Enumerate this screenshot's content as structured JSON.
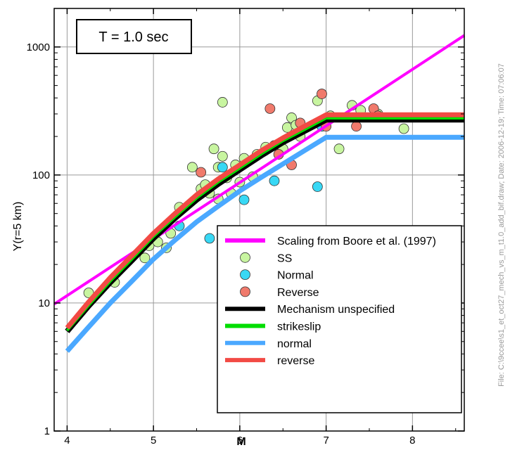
{
  "chart_data": {
    "type": "scatter",
    "xlabel": "M",
    "ylabel": "Y(r=5 km)",
    "xlim": [
      3.85,
      8.6
    ],
    "ylim": [
      1,
      2000
    ],
    "yscale": "log",
    "xticks": [
      "4",
      "5",
      "6",
      "7",
      "8"
    ],
    "yticks": [
      "1",
      "10",
      "100",
      "1000"
    ],
    "grid": true,
    "annotation": "T = 1.0 sec",
    "side_note": "File: C:\\9ccee\\s1_et_oct27_mech_vs_m_t1.0_add_bif.draw; Date: 2006-12-19; Time: 07:06:07",
    "legend_position": "bottom-right",
    "series": [
      {
        "name": "Scaling from Boore et al. (1997)",
        "kind": "line",
        "color": "#ff00ff",
        "x": [
          3.85,
          8.6
        ],
        "y": [
          9.8,
          1230
        ]
      },
      {
        "name": "SS",
        "kind": "points",
        "color": "#c8f5a0",
        "x": [
          4.25,
          4.55,
          4.9,
          4.95,
          5.05,
          5.15,
          5.2,
          5.3,
          5.45,
          5.55,
          5.6,
          5.65,
          5.7,
          5.75,
          5.75,
          5.8,
          5.8,
          5.85,
          5.9,
          5.95,
          6.0,
          6.05,
          6.15,
          6.2,
          6.3,
          6.4,
          6.5,
          6.55,
          6.6,
          6.65,
          6.7,
          6.9,
          7.05,
          7.15,
          7.3,
          7.4,
          7.6,
          7.9
        ],
        "y": [
          12,
          14.5,
          22.5,
          28,
          30,
          27,
          35,
          56,
          115,
          78,
          84,
          72,
          160,
          65,
          115,
          140,
          370,
          95,
          72,
          120,
          88,
          135,
          97,
          145,
          165,
          170,
          160,
          235,
          280,
          245,
          200,
          380,
          290,
          160,
          350,
          320,
          300,
          230
        ]
      },
      {
        "name": "Normal",
        "kind": "points",
        "color": "#38d8f5",
        "x": [
          5.3,
          5.65,
          5.8,
          6.05,
          6.4,
          6.9,
          6.95
        ],
        "y": [
          40,
          32,
          115,
          64,
          90,
          81,
          240
        ]
      },
      {
        "name": "Reverse",
        "kind": "points",
        "color": "#f07a6c",
        "x": [
          5.55,
          6.35,
          6.45,
          6.6,
          6.7,
          6.95,
          7.0,
          7.35,
          7.55,
          7.6
        ],
        "y": [
          105,
          330,
          145,
          120,
          255,
          430,
          240,
          240,
          330,
          290
        ]
      },
      {
        "name": "Mechanism unspecified",
        "kind": "line",
        "color": "#000000",
        "x": [
          4.0,
          4.25,
          4.5,
          4.75,
          5.0,
          5.25,
          5.5,
          5.75,
          6.0,
          6.25,
          6.5,
          6.75,
          7.0,
          8.6
        ],
        "y": [
          6.0,
          9.5,
          14.5,
          21.5,
          32,
          46,
          64,
          85,
          110,
          142,
          180,
          220,
          270,
          270
        ]
      },
      {
        "name": "strikeslip",
        "kind": "line",
        "color": "#00dd00",
        "x": [
          4.0,
          4.25,
          4.5,
          4.75,
          5.0,
          5.25,
          5.5,
          5.75,
          6.0,
          6.25,
          6.5,
          6.75,
          7.0,
          8.6
        ],
        "y": [
          6.1,
          9.6,
          14.8,
          22,
          33,
          47,
          66,
          88,
          113,
          146,
          185,
          226,
          278,
          278
        ]
      },
      {
        "name": "normal",
        "kind": "line",
        "color": "#4aa8ff",
        "x": [
          4.0,
          4.25,
          4.5,
          4.75,
          5.0,
          5.25,
          5.5,
          5.75,
          6.0,
          6.25,
          6.5,
          6.75,
          7.0,
          8.6
        ],
        "y": [
          4.2,
          6.5,
          10,
          14.8,
          22,
          31,
          43,
          57,
          75,
          96,
          122,
          155,
          197,
          197
        ]
      },
      {
        "name": "reverse",
        "kind": "line",
        "color": "#f24a44",
        "x": [
          4.0,
          4.25,
          4.5,
          4.75,
          5.0,
          5.25,
          5.5,
          5.75,
          6.0,
          6.25,
          6.5,
          6.75,
          7.0,
          8.6
        ],
        "y": [
          6.4,
          10.2,
          15.8,
          23.5,
          35,
          50,
          70,
          93,
          120,
          155,
          195,
          240,
          295,
          295
        ]
      }
    ]
  }
}
